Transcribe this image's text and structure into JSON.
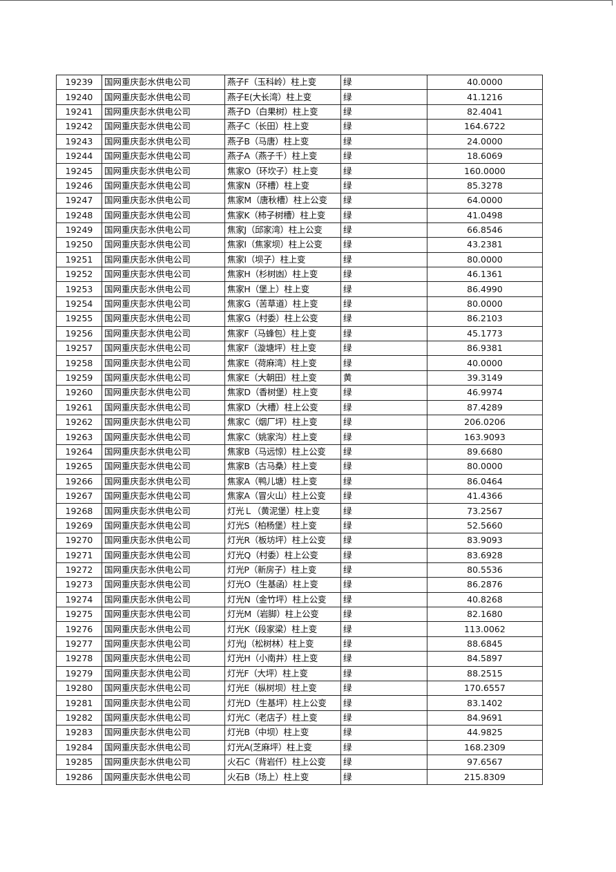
{
  "table": {
    "rows": [
      [
        "19239",
        "国网重庆彭水供电公司",
        "燕子F（玉科岭）柱上变",
        "绿",
        "40.0000"
      ],
      [
        "19240",
        "国网重庆彭水供电公司",
        "燕子E(大长湾）柱上变",
        "绿",
        "41.1216"
      ],
      [
        "19241",
        "国网重庆彭水供电公司",
        "燕子D（白果树）柱上变",
        "绿",
        "82.4041"
      ],
      [
        "19242",
        "国网重庆彭水供电公司",
        "燕子C（长田）柱上变",
        "绿",
        "164.6722"
      ],
      [
        "19243",
        "国网重庆彭水供电公司",
        "燕子B（马唐）柱上变",
        "绿",
        "24.0000"
      ],
      [
        "19244",
        "国网重庆彭水供电公司",
        "燕子A（燕子千）柱上变",
        "绿",
        "18.6069"
      ],
      [
        "19245",
        "国网重庆彭水供电公司",
        "焦家O（环坎子）柱上变",
        "绿",
        "160.0000"
      ],
      [
        "19246",
        "国网重庆彭水供电公司",
        "焦家N（环槽）柱上变",
        "绿",
        "85.3278"
      ],
      [
        "19247",
        "国网重庆彭水供电公司",
        "焦家M（唐秋槽）柱上公变",
        "绿",
        "64.0000"
      ],
      [
        "19248",
        "国网重庆彭水供电公司",
        "焦家K（柿子树槽）柱上变",
        "绿",
        "41.0498"
      ],
      [
        "19249",
        "国网重庆彭水供电公司",
        "焦家J（邱家湾）柱上公变",
        "绿",
        "66.8546"
      ],
      [
        "19250",
        "国网重庆彭水供电公司",
        "焦家I（焦家坝）柱上公变",
        "绿",
        "43.2381"
      ],
      [
        "19251",
        "国网重庆彭水供电公司",
        "焦家I（坝子）柱上变",
        "绿",
        "80.0000"
      ],
      [
        "19252",
        "国网重庆彭水供电公司",
        "焦家H（杉树凼）柱上变",
        "绿",
        "46.1361"
      ],
      [
        "19253",
        "国网重庆彭水供电公司",
        "焦家H（堡上）柱上变",
        "绿",
        "86.4990"
      ],
      [
        "19254",
        "国网重庆彭水供电公司",
        "焦家G（苦草道）柱上变",
        "绿",
        "80.0000"
      ],
      [
        "19255",
        "国网重庆彭水供电公司",
        "焦家G（村委）柱上公变",
        "绿",
        "86.2103"
      ],
      [
        "19256",
        "国网重庆彭水供电公司",
        "焦家F（马蜂包）柱上变",
        "绿",
        "45.1773"
      ],
      [
        "19257",
        "国网重庆彭水供电公司",
        "焦家F（漩塘坪）柱上变",
        "绿",
        "86.9381"
      ],
      [
        "19258",
        "国网重庆彭水供电公司",
        "焦家E（荷麻湾）柱上变",
        "绿",
        "40.0000"
      ],
      [
        "19259",
        "国网重庆彭水供电公司",
        "焦家E（大朝田）柱上变",
        "黄",
        "39.3149"
      ],
      [
        "19260",
        "国网重庆彭水供电公司",
        "焦家D（香树堡）柱上变",
        "绿",
        "46.9974"
      ],
      [
        "19261",
        "国网重庆彭水供电公司",
        "焦家D（大槽）柱上公变",
        "绿",
        "87.4289"
      ],
      [
        "19262",
        "国网重庆彭水供电公司",
        "焦家C（烟厂坪）柱上变",
        "绿",
        "206.0206"
      ],
      [
        "19263",
        "国网重庆彭水供电公司",
        "焦家C（姚家沟）柱上变",
        "绿",
        "163.9093"
      ],
      [
        "19264",
        "国网重庆彭水供电公司",
        "焦家B（马远惊）柱上公变",
        "绿",
        "89.6680"
      ],
      [
        "19265",
        "国网重庆彭水供电公司",
        "焦家B（古马桑）柱上变",
        "绿",
        "80.0000"
      ],
      [
        "19266",
        "国网重庆彭水供电公司",
        "焦家A（鸭儿塘）柱上变",
        "绿",
        "86.0464"
      ],
      [
        "19267",
        "国网重庆彭水供电公司",
        "焦家A（冒火山）柱上公变",
        "绿",
        "41.4366"
      ],
      [
        "19268",
        "国网重庆彭水供电公司",
        "灯光Ｌ（黄泥堡）柱上变",
        "绿",
        "73.2567"
      ],
      [
        "19269",
        "国网重庆彭水供电公司",
        "灯光S（柏杨堡）柱上变",
        "绿",
        "52.5660"
      ],
      [
        "19270",
        "国网重庆彭水供电公司",
        "灯光R（板坊坪）柱上公变",
        "绿",
        "83.9093"
      ],
      [
        "19271",
        "国网重庆彭水供电公司",
        "灯光Q（村委）柱上公变",
        "绿",
        "83.6928"
      ],
      [
        "19272",
        "国网重庆彭水供电公司",
        "灯光P（新房子）柱上变",
        "绿",
        "80.5536"
      ],
      [
        "19273",
        "国网重庆彭水供电公司",
        "灯光O（生基函）柱上变",
        "绿",
        "86.2876"
      ],
      [
        "19274",
        "国网重庆彭水供电公司",
        "灯光N（金竹坪）柱上公变",
        "绿",
        "40.8268"
      ],
      [
        "19275",
        "国网重庆彭水供电公司",
        "灯光M（岩脚）柱上公变",
        "绿",
        "82.1680"
      ],
      [
        "19276",
        "国网重庆彭水供电公司",
        "灯光K（段家梁）柱上变",
        "绿",
        "113.0062"
      ],
      [
        "19277",
        "国网重庆彭水供电公司",
        "灯光J（松树林）柱上变",
        "绿",
        "88.6845"
      ],
      [
        "19278",
        "国网重庆彭水供电公司",
        "灯光H（小南井）柱上变",
        "绿",
        "84.5897"
      ],
      [
        "19279",
        "国网重庆彭水供电公司",
        "灯光F（大坪）柱上变",
        "绿",
        "88.2515"
      ],
      [
        "19280",
        "国网重庆彭水供电公司",
        "灯光E（枞树坝）柱上变",
        "绿",
        "170.6557"
      ],
      [
        "19281",
        "国网重庆彭水供电公司",
        "灯光D（生基坪）柱上公变",
        "绿",
        "83.1402"
      ],
      [
        "19282",
        "国网重庆彭水供电公司",
        "灯光C（老店子）柱上变",
        "绿",
        "84.9691"
      ],
      [
        "19283",
        "国网重庆彭水供电公司",
        "灯光B（中坝）柱上变",
        "绿",
        "44.9825"
      ],
      [
        "19284",
        "国网重庆彭水供电公司",
        "灯光A(芝麻坪）柱上变",
        "绿",
        "168.2309"
      ],
      [
        "19285",
        "国网重庆彭水供电公司",
        "火石C（背岩仟）柱上公变",
        "绿",
        "97.6567"
      ],
      [
        "19286",
        "国网重庆彭水供电公司",
        "火石B（场上）柱上变",
        "绿",
        "215.8309"
      ]
    ]
  }
}
